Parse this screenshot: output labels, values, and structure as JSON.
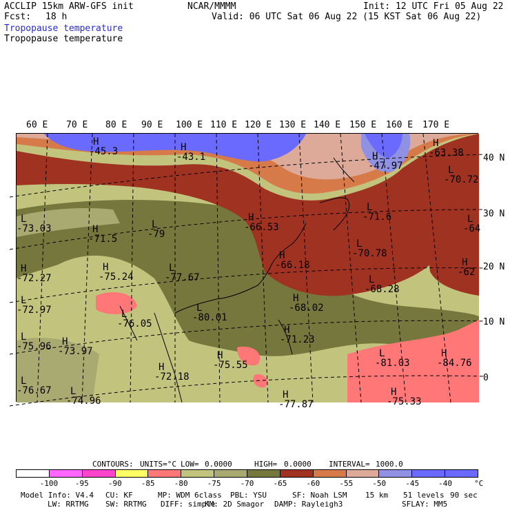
{
  "header": {
    "model": "ACCLIP 15km ARW-GFS init",
    "center": "NCAR/MMMM",
    "init": "Init: 12 UTC Fri 05 Aug 22",
    "fcst_label": "Fcst:",
    "fcst_value": "18 h",
    "valid": "Valid: 06 UTC Sat 06 Aug 22 (15 KST Sat 06 Aug 22)",
    "field_title_1": "Tropopause temperature",
    "field_title_2": "Tropopause temperature"
  },
  "map": {
    "lon_labels": [
      "60 E",
      "70 E",
      "80 E",
      "90 E",
      "100 E",
      "110 E",
      "120 E",
      "130 E",
      "140 E",
      "150 E",
      "160 E",
      "170 E"
    ],
    "lat_labels": [
      "40 N",
      "30 N",
      "20 N",
      "10 N",
      "0"
    ],
    "highs_lows": [
      {
        "sym": "H",
        "value": "-45.3"
      },
      {
        "sym": "H",
        "value": "-43.1"
      },
      {
        "sym": "H",
        "value": "-63.38"
      },
      {
        "sym": "H",
        "value": "-47.97"
      },
      {
        "sym": "L",
        "value": "-70.72"
      },
      {
        "sym": "L",
        "value": "-71.6"
      },
      {
        "sym": "L",
        "value": "-64"
      },
      {
        "sym": "H",
        "value": "-66.53"
      },
      {
        "sym": "L",
        "value": "-73.03"
      },
      {
        "sym": "H",
        "value": "-71.5"
      },
      {
        "sym": "L",
        "value": "-79"
      },
      {
        "sym": "L",
        "value": "-70.78"
      },
      {
        "sym": "H",
        "value": "-66.18"
      },
      {
        "sym": "H",
        "value": "-72.27"
      },
      {
        "sym": "H",
        "value": "-75.24"
      },
      {
        "sym": "L",
        "value": "-77.67"
      },
      {
        "sym": "L",
        "value": "-68.28"
      },
      {
        "sym": "H",
        "value": "-62"
      },
      {
        "sym": "H",
        "value": "-68.02"
      },
      {
        "sym": "L",
        "value": "-72.97"
      },
      {
        "sym": "L",
        "value": "-76.05"
      },
      {
        "sym": "L",
        "value": "-80.01"
      },
      {
        "sym": "H",
        "value": "-71.23"
      },
      {
        "sym": "L",
        "value": "-75.96"
      },
      {
        "sym": "H",
        "value": "-73.97"
      },
      {
        "sym": "L",
        "value": "-81.03"
      },
      {
        "sym": "H",
        "value": "-84.76"
      },
      {
        "sym": "H",
        "value": "-72.18"
      },
      {
        "sym": "H",
        "value": "-75.55"
      },
      {
        "sym": "L",
        "value": "-76.67"
      },
      {
        "sym": "L",
        "value": "-74.96"
      },
      {
        "sym": "H",
        "value": "-77.87"
      },
      {
        "sym": "H",
        "value": "-75.33"
      }
    ]
  },
  "contours": {
    "label": "CONTOURS:",
    "units": "UNITS=°C",
    "low_label": "LOW=",
    "low": "0.0000",
    "high_label": "HIGH=",
    "high": "0.0000",
    "interval_label": "INTERVAL=",
    "interval": "1000.0"
  },
  "legend": {
    "colors": [
      "#ffffff",
      "#ff66ff",
      "#ff44cc",
      "#ffff66",
      "#ff7777",
      "#c2c47e",
      "#a9a972",
      "#76773c",
      "#a03222",
      "#d77a4a",
      "#ddaa99",
      "#9191e3",
      "#6a6aff",
      "#6a6aff"
    ],
    "ticks": [
      "-100",
      "-95",
      "-90",
      "-85",
      "-80",
      "-75",
      "-70",
      "-65",
      "-60",
      "-55",
      "-50",
      "-45",
      "-40"
    ],
    "unit": "°C"
  },
  "footer": {
    "line1": [
      "Model Info: V4.4",
      "CU: KF",
      "MP: WDM 6class",
      "PBL: YSU",
      "SF: Noah LSM",
      "15 km",
      "51 levels",
      "90 sec"
    ],
    "line2": [
      "LW: RRTMG",
      "SW: RRTMG",
      "DIFF: simple",
      "KM: 2D Smagor",
      "DAMP: Rayleigh3",
      "SFLAY: MM5"
    ]
  }
}
